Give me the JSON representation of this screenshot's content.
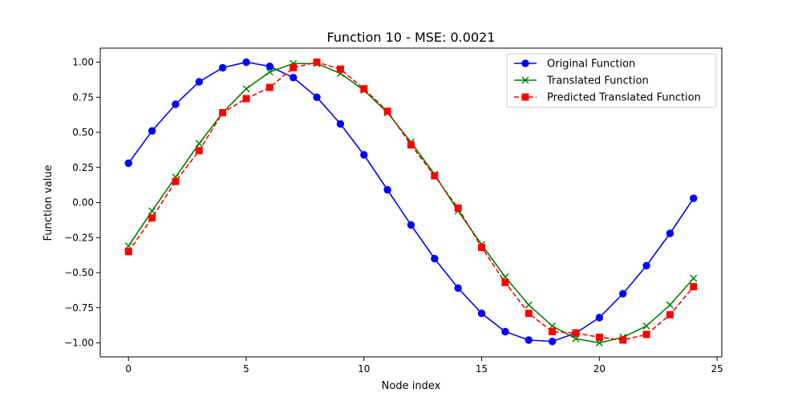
{
  "chart_data": {
    "type": "line",
    "title": "Function 10 - MSE: 0.0021",
    "xlabel": "Node index",
    "ylabel": "Function value",
    "xlim": [
      -1.2,
      25.2
    ],
    "ylim": [
      -1.1,
      1.1
    ],
    "xticks": [
      0,
      5,
      10,
      15,
      20,
      25
    ],
    "xtick_labels": [
      "0",
      "5",
      "10",
      "15",
      "20",
      "25"
    ],
    "yticks": [
      -1.0,
      -0.75,
      -0.5,
      -0.25,
      0.0,
      0.25,
      0.5,
      0.75,
      1.0
    ],
    "ytick_labels": [
      "−1.00",
      "−0.75",
      "−0.50",
      "−0.25",
      "0.00",
      "0.25",
      "0.50",
      "0.75",
      "1.00"
    ],
    "grid": false,
    "legend_position": "top-right",
    "x": [
      0,
      1,
      2,
      3,
      4,
      5,
      6,
      7,
      8,
      9,
      10,
      11,
      12,
      13,
      14,
      15,
      16,
      17,
      18,
      19,
      20,
      21,
      22,
      23,
      24
    ],
    "series": [
      {
        "name": "Original Function",
        "color": "#0000ff",
        "marker": "circle",
        "linestyle": "solid",
        "values": [
          0.28,
          0.51,
          0.7,
          0.86,
          0.96,
          1.0,
          0.97,
          0.89,
          0.75,
          0.56,
          0.34,
          0.09,
          -0.16,
          -0.4,
          -0.61,
          -0.79,
          -0.92,
          -0.98,
          -0.99,
          -0.93,
          -0.82,
          -0.65,
          -0.45,
          -0.22,
          0.03
        ]
      },
      {
        "name": "Translated Function",
        "color": "#008000",
        "marker": "x",
        "linestyle": "solid",
        "values": [
          -0.31,
          -0.06,
          0.18,
          0.42,
          0.64,
          0.81,
          0.93,
          0.99,
          0.99,
          0.92,
          0.8,
          0.64,
          0.43,
          0.2,
          -0.06,
          -0.3,
          -0.53,
          -0.73,
          -0.88,
          -0.97,
          -1.0,
          -0.96,
          -0.88,
          -0.73,
          -0.54
        ]
      },
      {
        "name": "Predicted Translated Function",
        "color": "#ff0000",
        "marker": "square",
        "linestyle": "dashed",
        "values": [
          -0.35,
          -0.11,
          0.15,
          0.37,
          0.64,
          0.74,
          0.82,
          0.96,
          1.0,
          0.95,
          0.81,
          0.65,
          0.41,
          0.19,
          -0.04,
          -0.32,
          -0.57,
          -0.79,
          -0.92,
          -0.93,
          -0.96,
          -0.98,
          -0.94,
          -0.8,
          -0.6
        ]
      }
    ]
  }
}
